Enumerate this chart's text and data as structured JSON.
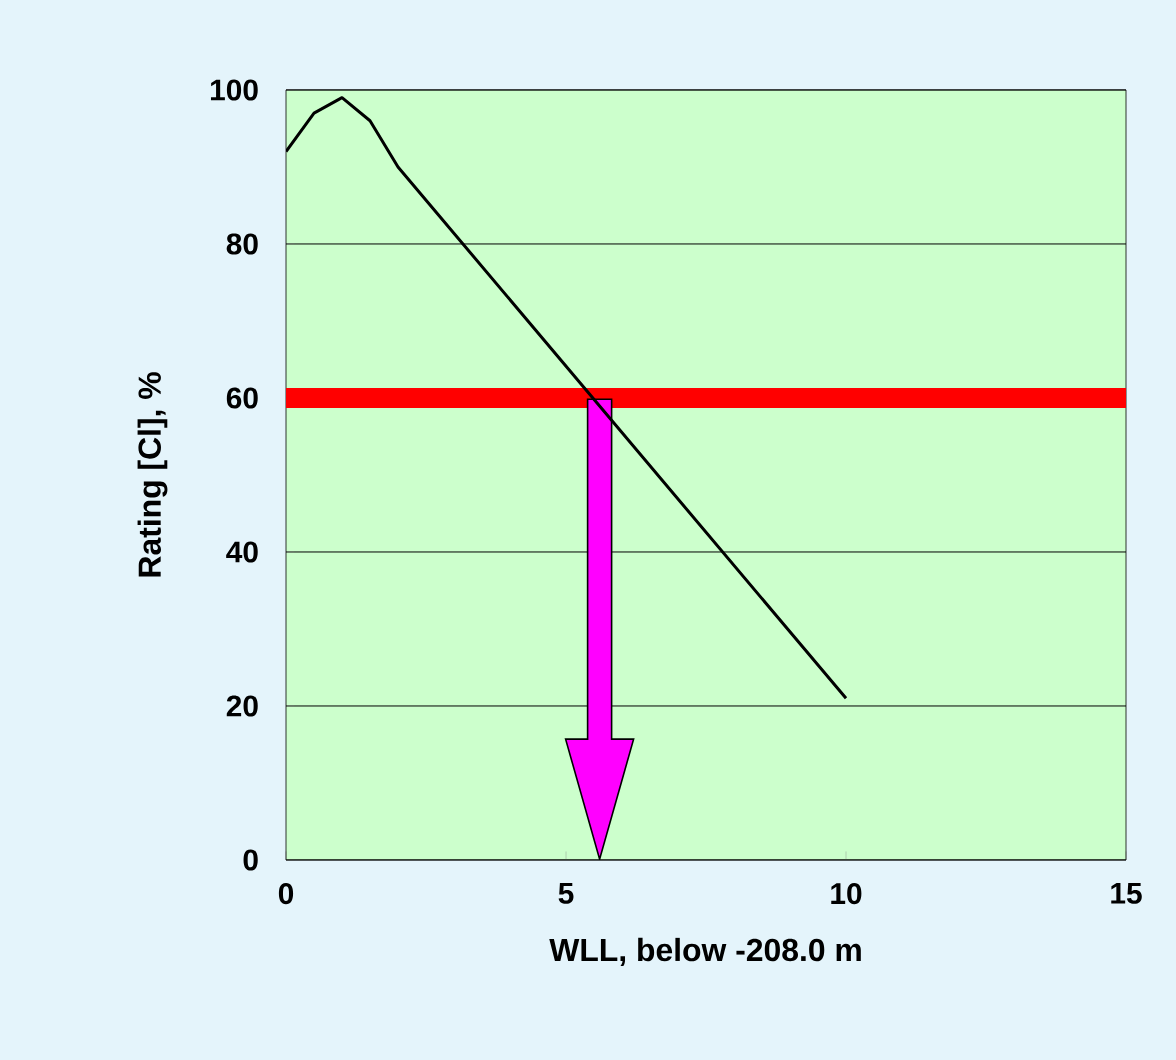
{
  "chart_data": {
    "type": "line",
    "xlabel": "WLL, below -208.0 m",
    "ylabel": "Rating [Cl], %",
    "xlim": [
      0,
      15
    ],
    "xticks": [
      0,
      5,
      10,
      15
    ],
    "ylim": [
      0,
      100
    ],
    "yticks": [
      0,
      20,
      40,
      60,
      80,
      100
    ],
    "grid": "y",
    "series": [
      {
        "color": "#000000",
        "x": [
          0,
          0.5,
          1,
          1.5,
          2,
          10
        ],
        "values": [
          92,
          97,
          99,
          96,
          90,
          21
        ]
      }
    ],
    "ref_lines": [
      {
        "axis": "y",
        "value": 60,
        "color": "#ff0000"
      }
    ]
  }
}
